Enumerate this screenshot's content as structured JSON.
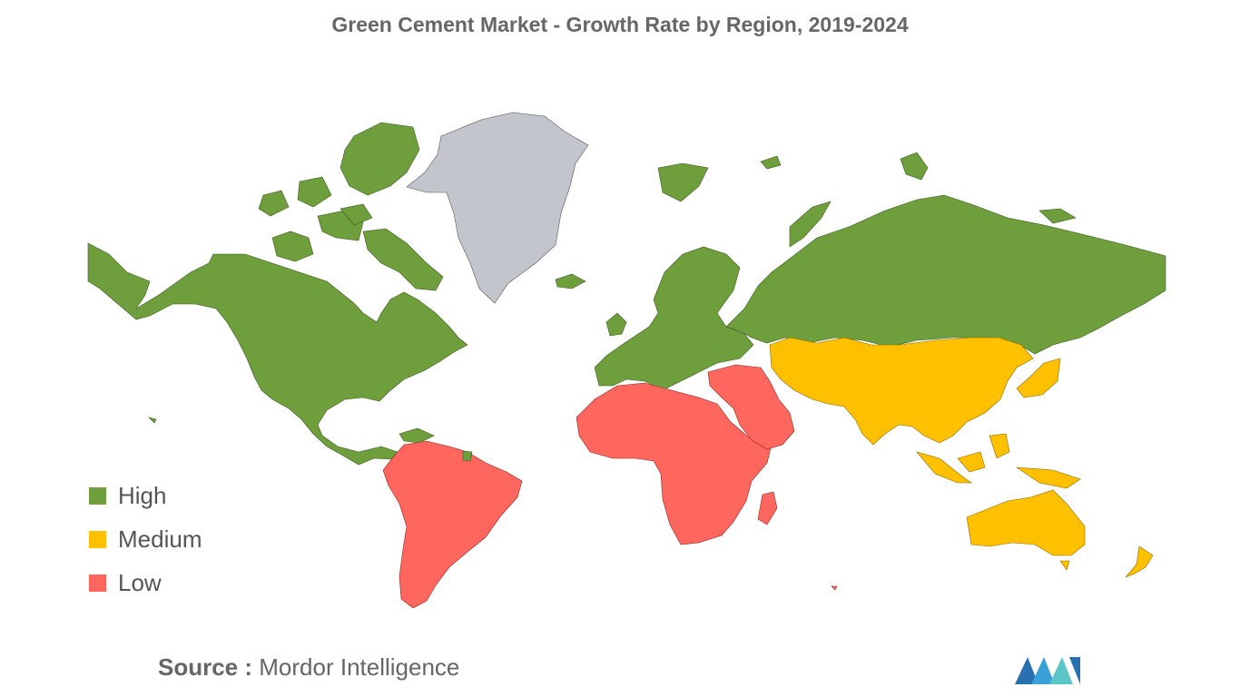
{
  "title": "Green Cement Market - Growth Rate by Region, 2019-2024",
  "legend": [
    {
      "label": "High",
      "color": "#6f9e3c"
    },
    {
      "label": "Medium",
      "color": "#ffc000"
    },
    {
      "label": "Low",
      "color": "#ff665e"
    }
  ],
  "no_data_color": "#c2c6cc",
  "source": {
    "prefix": "Source :",
    "name": "Mordor Intelligence"
  },
  "regions": [
    {
      "name": "North America",
      "level": "High"
    },
    {
      "name": "Europe",
      "level": "High"
    },
    {
      "name": "Russia",
      "level": "High"
    },
    {
      "name": "Asia-Pacific",
      "level": "Medium"
    },
    {
      "name": "South America",
      "level": "Low"
    },
    {
      "name": "Middle East and Africa",
      "level": "Low"
    }
  ]
}
